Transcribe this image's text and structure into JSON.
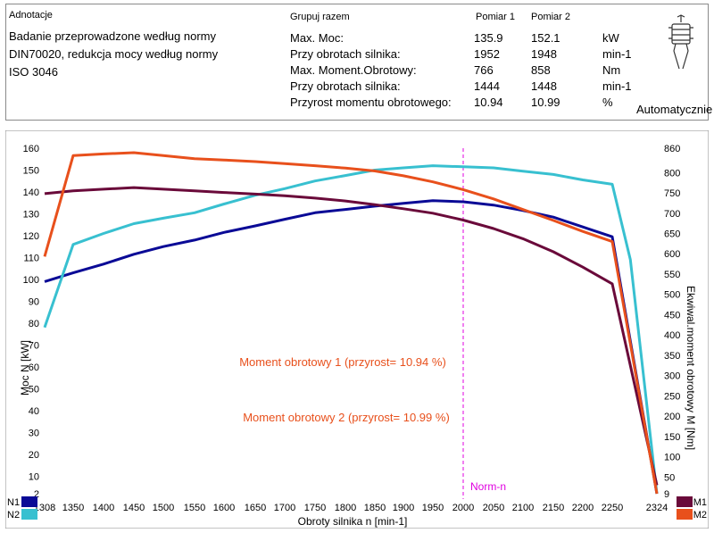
{
  "header": {
    "annotations_label": "Adnotacje",
    "group_label": "Grupuj razem",
    "measure1_label": "Pomiar 1",
    "measure2_label": "Pomiar 2",
    "description": "Badanie przeprowadzone według normy DIN70020, redukcja mocy według normy ISO 3046",
    "mode_label": "Automatycznie",
    "rows": [
      {
        "label": "Max. Moc:",
        "m1": "135.9",
        "m2": "152.1",
        "unit": "kW"
      },
      {
        "label": "Przy obrotach silnika:",
        "m1": "1952",
        "m2": "1948",
        "unit": "min-1"
      },
      {
        "label": "Max. Moment.Obrotowy:",
        "m1": "766",
        "m2": "858",
        "unit": "Nm"
      },
      {
        "label": "Przy obrotach silnika:",
        "m1": "1444",
        "m2": "1448",
        "unit": "min-1"
      },
      {
        "label": "Przyrost momentu obrotowego:",
        "m1": "10.94",
        "m2": "10.99",
        "unit": "%"
      }
    ]
  },
  "chart_data": {
    "type": "line",
    "xlabel": "Obroty silnika n [min-1]",
    "ylabel_left": "Moc N [kW]",
    "ylabel_right": "Ekwiwal.moment obrotowy M [Nm]",
    "x_ticks": [
      "1308",
      "1350",
      "1400",
      "1450",
      "1500",
      "1550",
      "1600",
      "1650",
      "1700",
      "1750",
      "1800",
      "1850",
      "1900",
      "1950",
      "2000",
      "2050",
      "2100",
      "2150",
      "2200",
      "2250",
      "2324"
    ],
    "left_ticks": [
      2,
      10,
      20,
      30,
      40,
      50,
      60,
      70,
      80,
      90,
      100,
      110,
      120,
      130,
      140,
      150,
      160
    ],
    "right_ticks": [
      9,
      50,
      100,
      150,
      200,
      250,
      300,
      350,
      400,
      450,
      500,
      550,
      600,
      650,
      700,
      750,
      800,
      860
    ],
    "norm_marker": {
      "label": "Norm-n",
      "x": 2000,
      "color": "#e000e0"
    },
    "annotations": [
      {
        "text": "Moment obrotowy 1 (przyrost= 10.94 %)",
        "color": "#e8501c"
      },
      {
        "text": "Moment obrotowy 2 (przyrost= 10.99 %)",
        "color": "#e8501c"
      }
    ],
    "series": [
      {
        "name": "N1",
        "axis": "left",
        "color": "#0a0a96",
        "points": [
          [
            1308,
            99
          ],
          [
            1350,
            103
          ],
          [
            1400,
            107
          ],
          [
            1450,
            111.5
          ],
          [
            1500,
            115
          ],
          [
            1550,
            118
          ],
          [
            1600,
            121.5
          ],
          [
            1650,
            124.5
          ],
          [
            1700,
            127.5
          ],
          [
            1750,
            130.5
          ],
          [
            1800,
            132
          ],
          [
            1850,
            133.5
          ],
          [
            1900,
            134.8
          ],
          [
            1950,
            136
          ],
          [
            2000,
            135.5
          ],
          [
            2050,
            134
          ],
          [
            2100,
            131.5
          ],
          [
            2150,
            128.5
          ],
          [
            2200,
            124
          ],
          [
            2250,
            119.5
          ],
          [
            2324,
            2
          ]
        ]
      },
      {
        "name": "N2",
        "axis": "left",
        "color": "#38c0d0",
        "points": [
          [
            1308,
            78
          ],
          [
            1350,
            116
          ],
          [
            1400,
            121
          ],
          [
            1450,
            125.5
          ],
          [
            1500,
            128
          ],
          [
            1550,
            130.5
          ],
          [
            1600,
            134.5
          ],
          [
            1650,
            138.5
          ],
          [
            1700,
            141.5
          ],
          [
            1750,
            145
          ],
          [
            1800,
            147.5
          ],
          [
            1850,
            150
          ],
          [
            1900,
            151
          ],
          [
            1950,
            152
          ],
          [
            2000,
            151.5
          ],
          [
            2050,
            151
          ],
          [
            2100,
            149.5
          ],
          [
            2150,
            148
          ],
          [
            2200,
            145.5
          ],
          [
            2250,
            143.5
          ],
          [
            2280,
            109
          ],
          [
            2324,
            2
          ]
        ]
      },
      {
        "name": "M1",
        "axis": "right",
        "color": "#6a0a3a",
        "points": [
          [
            1308,
            748
          ],
          [
            1350,
            755
          ],
          [
            1400,
            759
          ],
          [
            1450,
            763
          ],
          [
            1500,
            759
          ],
          [
            1550,
            755
          ],
          [
            1600,
            751
          ],
          [
            1650,
            747
          ],
          [
            1700,
            743
          ],
          [
            1750,
            737
          ],
          [
            1800,
            730
          ],
          [
            1850,
            721
          ],
          [
            1900,
            711
          ],
          [
            1950,
            700
          ],
          [
            2000,
            683
          ],
          [
            2050,
            662
          ],
          [
            2100,
            637
          ],
          [
            2150,
            605
          ],
          [
            2200,
            567
          ],
          [
            2250,
            526
          ],
          [
            2324,
            30
          ]
        ]
      },
      {
        "name": "M2",
        "axis": "right",
        "color": "#e8501c",
        "points": [
          [
            1308,
            593
          ],
          [
            1350,
            842
          ],
          [
            1400,
            846
          ],
          [
            1450,
            849
          ],
          [
            1500,
            842
          ],
          [
            1550,
            834
          ],
          [
            1600,
            831
          ],
          [
            1650,
            827
          ],
          [
            1700,
            822
          ],
          [
            1750,
            817
          ],
          [
            1800,
            811
          ],
          [
            1850,
            804
          ],
          [
            1900,
            792
          ],
          [
            1950,
            777
          ],
          [
            2000,
            758
          ],
          [
            2050,
            735
          ],
          [
            2100,
            709
          ],
          [
            2150,
            682
          ],
          [
            2200,
            655
          ],
          [
            2250,
            630
          ],
          [
            2324,
            9
          ]
        ]
      }
    ]
  }
}
